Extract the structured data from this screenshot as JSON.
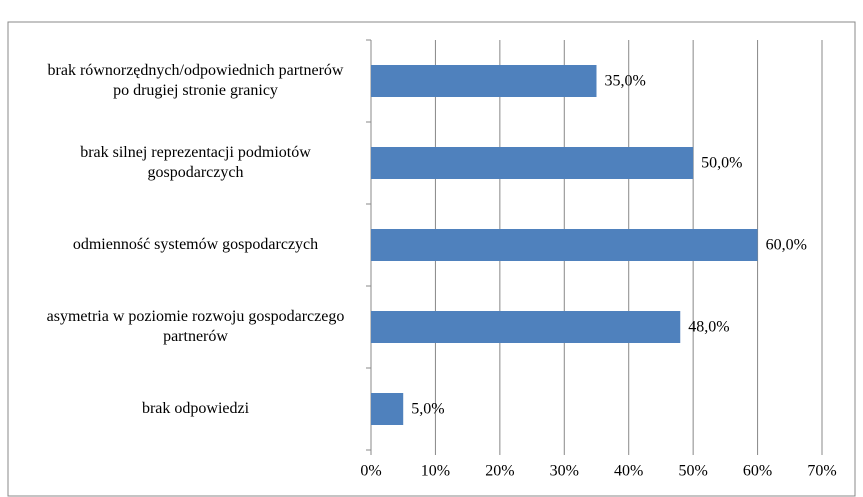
{
  "chart_data": {
    "type": "bar",
    "orientation": "horizontal",
    "categories": [
      "brak równorzędnych/odpowiednich partnerów po drugiej stronie granicy",
      "brak silnej reprezentacji podmiotów gospodarczych",
      "odmienność systemów gospodarczych",
      "asymetria w poziomie rozwoju gospodarczego partnerów",
      "brak odpowiedzi"
    ],
    "values": [
      35,
      50,
      60,
      48,
      5
    ],
    "value_labels": [
      "35,0%",
      "50,0%",
      "60,0%",
      "48,0%",
      "5,0%"
    ],
    "color": "#4f81bd",
    "xlim": [
      0,
      70
    ],
    "xticks": [
      {
        "value": 0,
        "label": "0%"
      },
      {
        "value": 10,
        "label": "10%"
      },
      {
        "value": 20,
        "label": "20%"
      },
      {
        "value": 30,
        "label": "30%"
      },
      {
        "value": 40,
        "label": "40%"
      },
      {
        "value": 50,
        "label": "50%"
      },
      {
        "value": 60,
        "label": "60%"
      },
      {
        "value": 70,
        "label": "70%"
      }
    ],
    "grid": true
  }
}
